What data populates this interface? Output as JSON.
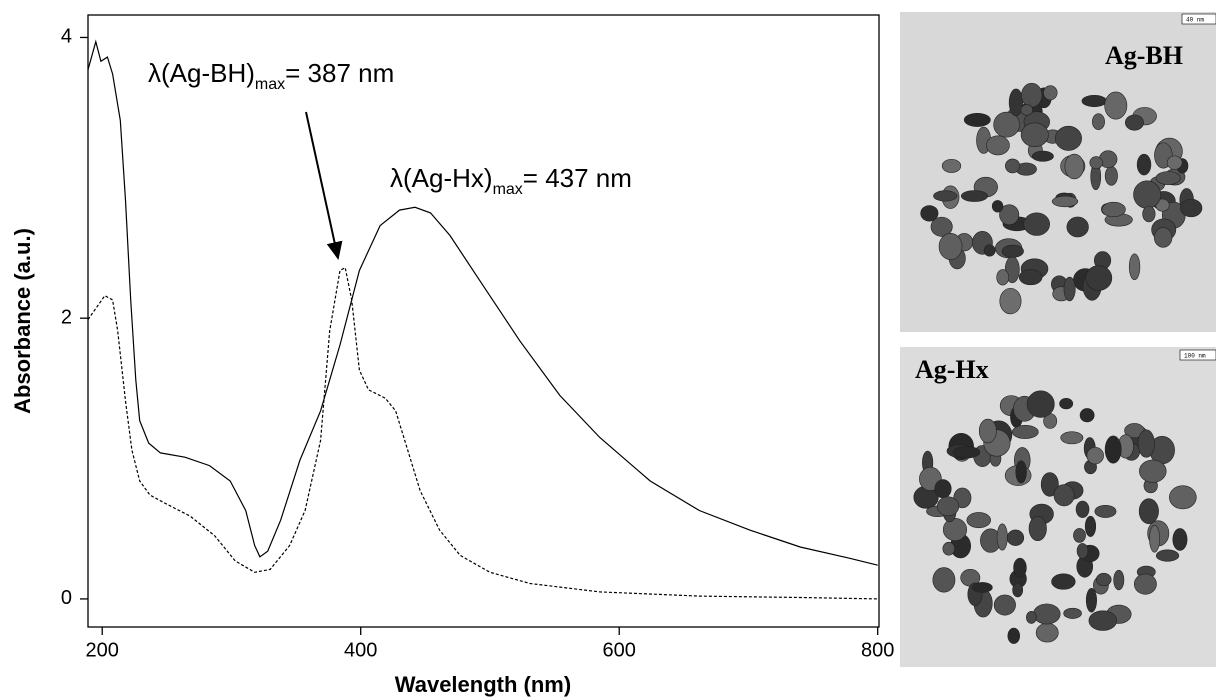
{
  "chart_data": {
    "type": "line",
    "xlabel": "Wavelength (nm)",
    "ylabel": "Absorbance (a.u.)",
    "xlim": [
      189,
      801
    ],
    "xticks": [
      200,
      400,
      600,
      800
    ],
    "ylim": [
      -0.2,
      4.16
    ],
    "yticks": [
      0,
      2,
      4
    ],
    "series": [
      {
        "color": "#000000",
        "style": "solid",
        "x": [
          189,
          195,
          199,
          204,
          208,
          214,
          218,
          222,
          226,
          229,
          236,
          245,
          264,
          283,
          299,
          311,
          318,
          322,
          328,
          338,
          353,
          369,
          384,
          399,
          415,
          430,
          442,
          454,
          469,
          492,
          523,
          554,
          585,
          624,
          662,
          701,
          740,
          778,
          800
        ],
        "values": [
          3.77,
          3.97,
          3.83,
          3.86,
          3.74,
          3.41,
          2.84,
          2.13,
          1.56,
          1.27,
          1.11,
          1.04,
          1.01,
          0.95,
          0.84,
          0.63,
          0.38,
          0.3,
          0.34,
          0.56,
          0.99,
          1.34,
          1.81,
          2.34,
          2.66,
          2.77,
          2.79,
          2.75,
          2.59,
          2.27,
          1.84,
          1.45,
          1.15,
          0.84,
          0.63,
          0.49,
          0.37,
          0.29,
          0.24
        ]
      },
      {
        "color": "#000000",
        "style": "dashed",
        "x": [
          189,
          202,
          208,
          212,
          218,
          223,
          229,
          237,
          249,
          268,
          287,
          303,
          318,
          330,
          345,
          357,
          369,
          376,
          384,
          388,
          393,
          399,
          406,
          419,
          427,
          434,
          446,
          461,
          477,
          500,
          531,
          585,
          662,
          740,
          800
        ],
        "values": [
          1.99,
          2.16,
          2.13,
          1.91,
          1.41,
          1.06,
          0.84,
          0.74,
          0.68,
          0.59,
          0.45,
          0.27,
          0.19,
          0.21,
          0.38,
          0.63,
          1.13,
          1.91,
          2.34,
          2.36,
          2.13,
          1.63,
          1.49,
          1.43,
          1.34,
          1.13,
          0.77,
          0.49,
          0.31,
          0.19,
          0.11,
          0.05,
          0.02,
          0.01,
          0
        ]
      }
    ],
    "annotations": [
      {
        "text": "λ(Ag-BH)",
        "sub": "max",
        "suffix": "= 387 nm"
      },
      {
        "text": "λ(Ag-Hx)",
        "sub": "max",
        "suffix": "= 437 nm"
      }
    ]
  },
  "images": [
    {
      "label": "Ag-BH",
      "scale": "40 nm"
    },
    {
      "label": "Ag-Hx",
      "scale": "100 nm"
    }
  ]
}
